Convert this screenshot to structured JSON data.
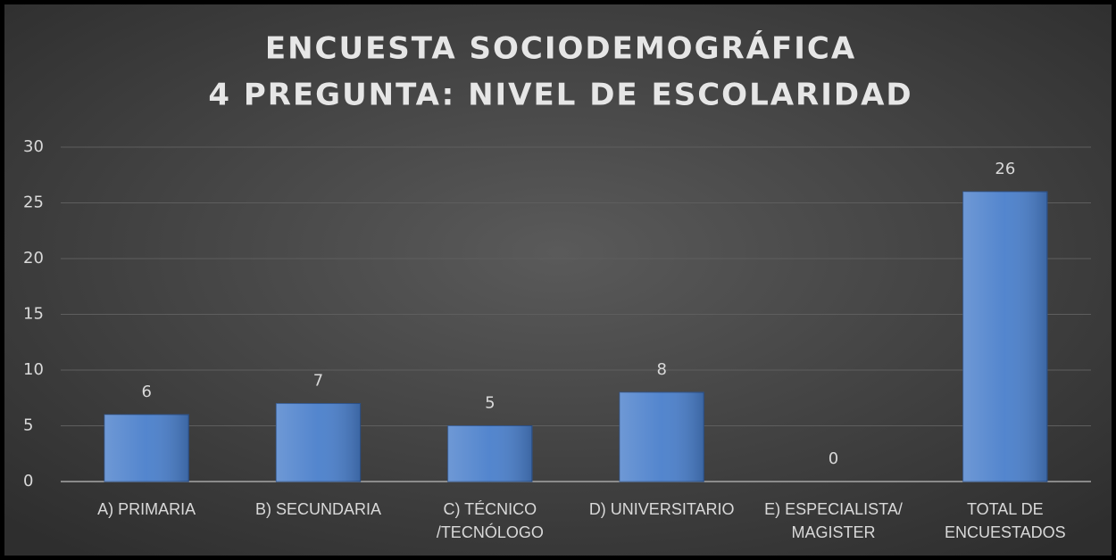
{
  "chart_data": {
    "type": "bar",
    "title": [
      "ENCUESTA SOCIODEMOGRÁFICA",
      "4 PREGUNTA: NIVEL DE ESCOLARIDAD"
    ],
    "categories": [
      "A) PRIMARIA",
      "B) SECUNDARIA",
      "C) TÉCNICO /TECNÓLOGO",
      "D) UNIVERSITARIO",
      "E) ESPECIALISTA/ MAGISTER",
      "TOTAL DE ENCUESTADOS"
    ],
    "values": [
      6,
      7,
      5,
      8,
      0,
      26
    ],
    "color": "#4a7fcb",
    "ylim": [
      0,
      30
    ],
    "yticks": [
      0,
      5,
      10,
      15,
      20,
      25,
      30
    ],
    "grid": true
  }
}
